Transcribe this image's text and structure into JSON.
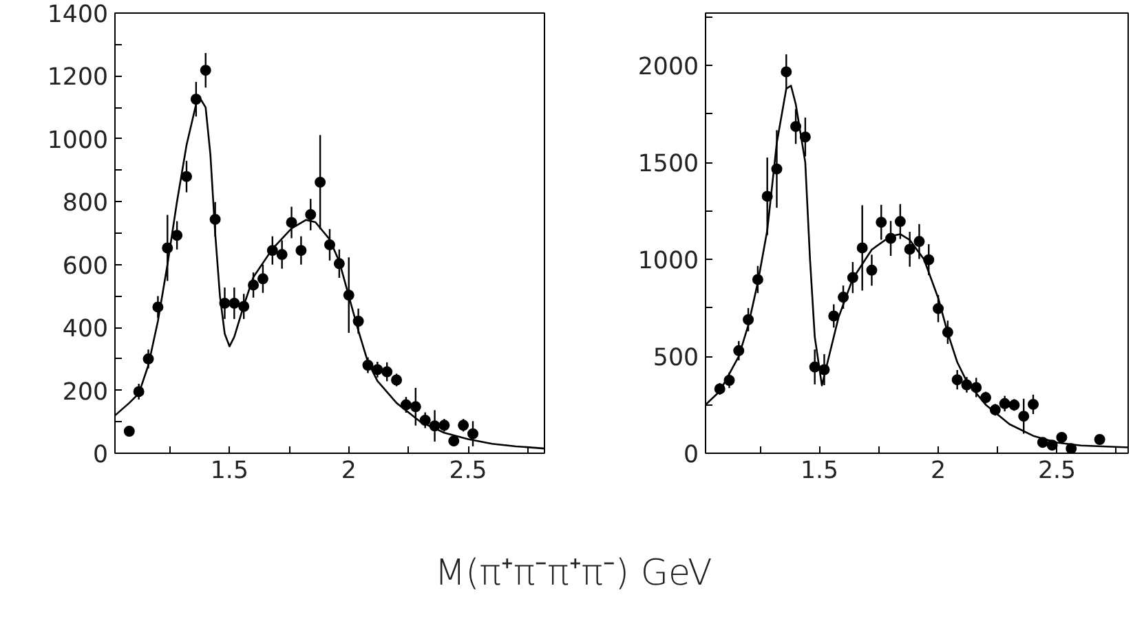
{
  "chart_data": [
    {
      "type": "scatter",
      "xlabel": "M(π⁺π⁻π⁺π⁻)    GeV",
      "grid": false,
      "xlim": [
        1.02,
        2.82
      ],
      "ylim": [
        0,
        1400
      ],
      "xticks": [
        {
          "value": 1.25,
          "label": null
        },
        1.5,
        {
          "value": 1.75,
          "label": null
        },
        2,
        {
          "value": 2.25,
          "label": null
        },
        2.5,
        {
          "value": 2.75,
          "label": null
        }
      ],
      "yticks": [
        0,
        {
          "value": 100,
          "label": null
        },
        200,
        {
          "value": 300,
          "label": null
        },
        400,
        {
          "value": 500,
          "label": null
        },
        600,
        {
          "value": 700,
          "label": null
        },
        800,
        {
          "value": 900,
          "label": null
        },
        1000,
        {
          "value": 1100,
          "label": null
        },
        1200,
        {
          "value": 1300,
          "label": null
        },
        1400
      ],
      "series": [
        {
          "marker": "circle",
          "color": "#000000",
          "x": [
            1.08,
            1.12,
            1.16,
            1.2,
            1.24,
            1.28,
            1.32,
            1.36,
            1.4,
            1.44,
            1.48,
            1.52,
            1.56,
            1.6,
            1.64,
            1.68,
            1.72,
            1.76,
            1.8,
            1.84,
            1.88,
            1.92,
            1.96,
            2.0,
            2.04,
            2.08,
            2.12,
            2.16,
            2.2,
            2.24,
            2.28,
            2.32,
            2.36,
            2.4,
            2.44,
            2.48,
            2.52
          ],
          "values": [
            70,
            196,
            300,
            465,
            653,
            693,
            880,
            1126,
            1218,
            744,
            477,
            477,
            467,
            535,
            555,
            645,
            632,
            734,
            645,
            759,
            862,
            663,
            603,
            503,
            420,
            280,
            266,
            259,
            233,
            154,
            148,
            105,
            87,
            89,
            39,
            89,
            62
          ],
          "errors": [
            null,
            25,
            30,
            35,
            105,
            45,
            50,
            55,
            55,
            55,
            50,
            50,
            40,
            40,
            45,
            45,
            45,
            50,
            45,
            50,
            150,
            50,
            45,
            120,
            40,
            25,
            25,
            30,
            20,
            25,
            60,
            25,
            50,
            20,
            15,
            20,
            40
          ]
        },
        {
          "type": "line",
          "color": "#000000",
          "x": [
            1.02,
            1.08,
            1.12,
            1.16,
            1.2,
            1.24,
            1.28,
            1.32,
            1.36,
            1.38,
            1.4,
            1.42,
            1.44,
            1.46,
            1.48,
            1.5,
            1.52,
            1.56,
            1.6,
            1.68,
            1.76,
            1.82,
            1.86,
            1.92,
            1.96,
            2.0,
            2.04,
            2.08,
            2.12,
            2.2,
            2.3,
            2.4,
            2.5,
            2.6,
            2.7,
            2.82
          ],
          "values": [
            120,
            160,
            190,
            280,
            420,
            600,
            800,
            980,
            1110,
            1125,
            1100,
            950,
            700,
            500,
            380,
            340,
            370,
            470,
            560,
            650,
            715,
            742,
            735,
            680,
            610,
            500,
            390,
            290,
            230,
            160,
            100,
            65,
            45,
            30,
            22,
            15
          ]
        }
      ]
    },
    {
      "type": "scatter",
      "grid": false,
      "xlim": [
        1.02,
        2.8
      ],
      "ylim": [
        0,
        2270
      ],
      "xticks": [
        {
          "value": 1.25,
          "label": null
        },
        1.5,
        {
          "value": 1.75,
          "label": null
        },
        2,
        {
          "value": 2.25,
          "label": null
        },
        2.5,
        {
          "value": 2.75,
          "label": null
        }
      ],
      "yticks": [
        0,
        {
          "value": 250,
          "label": null
        },
        500,
        {
          "value": 750,
          "label": null
        },
        1000,
        {
          "value": 1250,
          "label": null
        },
        1500,
        {
          "value": 1750,
          "label": null
        },
        2000,
        {
          "value": 2250,
          "label": null
        }
      ],
      "series": [
        {
          "marker": "circle",
          "color": "#000000",
          "x": [
            1.08,
            1.12,
            1.16,
            1.2,
            1.24,
            1.28,
            1.32,
            1.36,
            1.4,
            1.44,
            1.48,
            1.52,
            1.56,
            1.6,
            1.64,
            1.68,
            1.72,
            1.76,
            1.8,
            1.84,
            1.88,
            1.92,
            1.96,
            2.0,
            2.04,
            2.08,
            2.12,
            2.16,
            2.2,
            2.24,
            2.28,
            2.32,
            2.36,
            2.4,
            2.44,
            2.48,
            2.52,
            2.56,
            2.68
          ],
          "values": [
            332,
            376,
            529,
            689,
            896,
            1325,
            1466,
            1967,
            1685,
            1631,
            445,
            431,
            708,
            805,
            906,
            1059,
            944,
            1191,
            1108,
            1195,
            1052,
            1092,
            998,
            746,
            624,
            379,
            353,
            339,
            287,
            224,
            256,
            249,
            191,
            252,
            56,
            42,
            82,
            24,
            71
          ],
          "errors": [
            30,
            40,
            50,
            60,
            70,
            200,
            200,
            90,
            90,
            100,
            90,
            80,
            60,
            60,
            80,
            220,
            80,
            90,
            90,
            90,
            90,
            90,
            80,
            70,
            60,
            50,
            40,
            50,
            30,
            30,
            40,
            30,
            90,
            50,
            15,
            15,
            20,
            15,
            20
          ]
        },
        {
          "type": "line",
          "color": "#000000",
          "x": [
            1.02,
            1.08,
            1.16,
            1.2,
            1.24,
            1.28,
            1.32,
            1.36,
            1.38,
            1.4,
            1.44,
            1.46,
            1.48,
            1.51,
            1.54,
            1.58,
            1.64,
            1.72,
            1.8,
            1.84,
            1.88,
            1.94,
            2.0,
            2.04,
            2.08,
            2.12,
            2.2,
            2.3,
            2.4,
            2.5,
            2.6,
            2.8
          ],
          "values": [
            250,
            320,
            500,
            660,
            880,
            1150,
            1600,
            1880,
            1895,
            1800,
            1500,
            1000,
            600,
            350,
            500,
            700,
            900,
            1050,
            1120,
            1130,
            1100,
            1000,
            800,
            620,
            470,
            370,
            250,
            150,
            90,
            55,
            40,
            30
          ]
        }
      ]
    }
  ]
}
